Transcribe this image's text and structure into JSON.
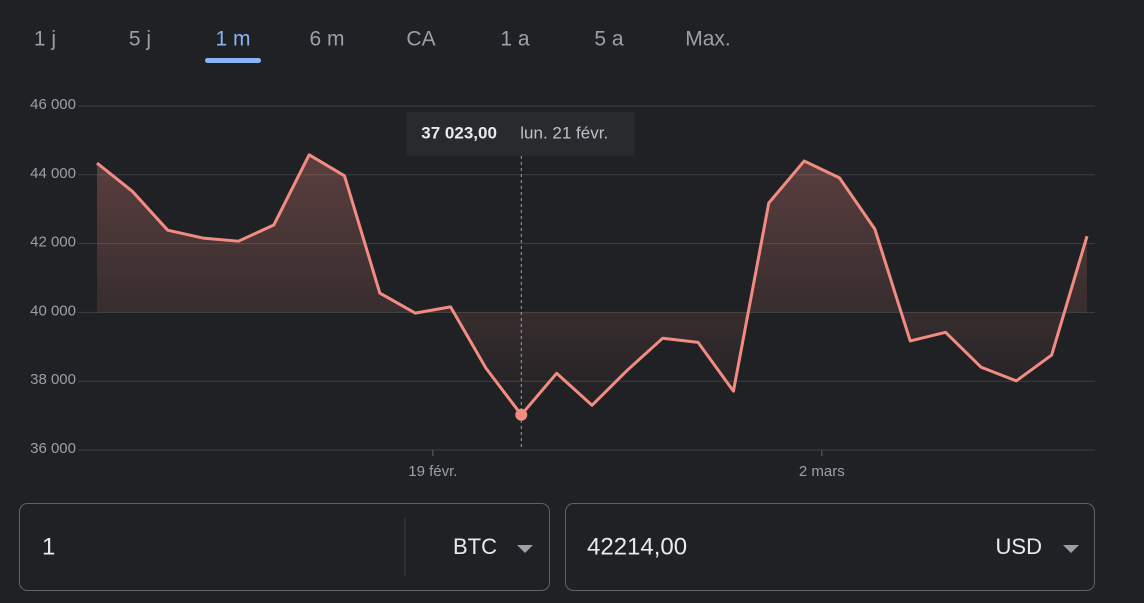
{
  "tabs": [
    "1 j",
    "5 j",
    "1 m",
    "6 m",
    "CA",
    "1 a",
    "5 a",
    "Max."
  ],
  "active_tab": "1 m",
  "chart_data": {
    "type": "line",
    "categories": [
      null,
      null,
      null,
      null,
      null,
      null,
      null,
      null,
      null,
      null,
      "19 févr.",
      null,
      null,
      null,
      null,
      null,
      null,
      null,
      null,
      null,
      null,
      "2 mars",
      null,
      null,
      null,
      null,
      null,
      null,
      null
    ],
    "values": [
      44340,
      43520,
      42390,
      42160,
      42070,
      42540,
      44580,
      43970,
      40560,
      39980,
      40160,
      38380,
      37023,
      38230,
      37300,
      38320,
      39250,
      39130,
      37710,
      43180,
      44400,
      43910,
      42420,
      39170,
      39420,
      38410,
      38010,
      38760,
      42214
    ],
    "value_labels": [
      null,
      null,
      null,
      null,
      null,
      null,
      null,
      null,
      null,
      null,
      null,
      null,
      "37 023,00",
      null,
      null,
      null,
      null,
      null,
      null,
      null,
      null,
      null,
      null,
      null,
      null,
      null,
      null,
      null,
      null
    ],
    "tooltip": {
      "date": "lun. 21 févr."
    },
    "color": "#f28b82",
    "ylim": [
      36000,
      46000
    ],
    "yticks": [
      {
        "value": 36000,
        "label": "36 000"
      },
      {
        "value": 38000,
        "label": "38 000"
      },
      {
        "value": 40000,
        "label": "40 000"
      },
      {
        "value": 42000,
        "label": "42 000"
      },
      {
        "value": 44000,
        "label": "44 000"
      },
      {
        "value": 46000,
        "label": "46 000"
      }
    ],
    "grid": true
  },
  "converter": {
    "from": {
      "amount": "1",
      "currency": "BTC"
    },
    "to": {
      "amount": "42214,00",
      "currency": "USD"
    }
  }
}
